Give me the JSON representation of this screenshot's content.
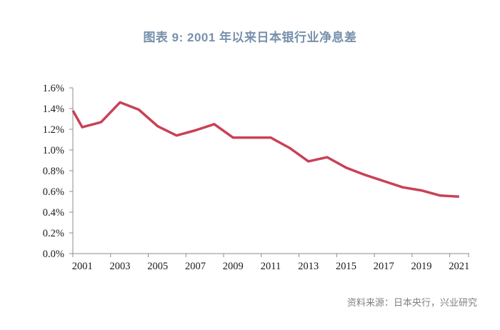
{
  "header": {
    "title": "图表 9: 2001 年以来日本银行业净息差"
  },
  "footer": {
    "source": "资料来源：日本央行，兴业研究"
  },
  "colors": {
    "title": "#7890AC",
    "line": "#C94156",
    "axis": "#8C8C8C",
    "tick_text": "#1a1a1a",
    "source_text": "#808080",
    "background": "#ffffff"
  },
  "chart_data": {
    "type": "line",
    "title": "图表 9: 2001 年以来日本银行业净息差",
    "source": "资料来源：日本央行，兴业研究",
    "x": [
      2001,
      2002,
      2003,
      2004,
      2005,
      2006,
      2007,
      2008,
      2009,
      2010,
      2011,
      2012,
      2013,
      2014,
      2015,
      2016,
      2017,
      2018,
      2019,
      2020,
      2021
    ],
    "values": [
      1.22,
      1.27,
      1.46,
      1.39,
      1.23,
      1.14,
      1.19,
      1.25,
      1.12,
      1.12,
      1.12,
      1.02,
      0.89,
      0.93,
      0.83,
      0.76,
      0.7,
      0.64,
      0.61,
      0.56,
      0.55
    ],
    "axis_edge_start_value": 1.38,
    "unit": "%",
    "ylim": [
      0,
      1.6
    ],
    "y_tick_step": 0.2,
    "y_tick_labels": [
      "0.0%",
      "0.2%",
      "0.4%",
      "0.6%",
      "0.8%",
      "1.0%",
      "1.2%",
      "1.4%",
      "1.6%"
    ],
    "x_tick_labels": [
      "2001",
      "2003",
      "2005",
      "2007",
      "2009",
      "2011",
      "2013",
      "2015",
      "2017",
      "2019",
      "2021"
    ],
    "grid": false,
    "legend": false,
    "xlabel": "",
    "ylabel": ""
  }
}
